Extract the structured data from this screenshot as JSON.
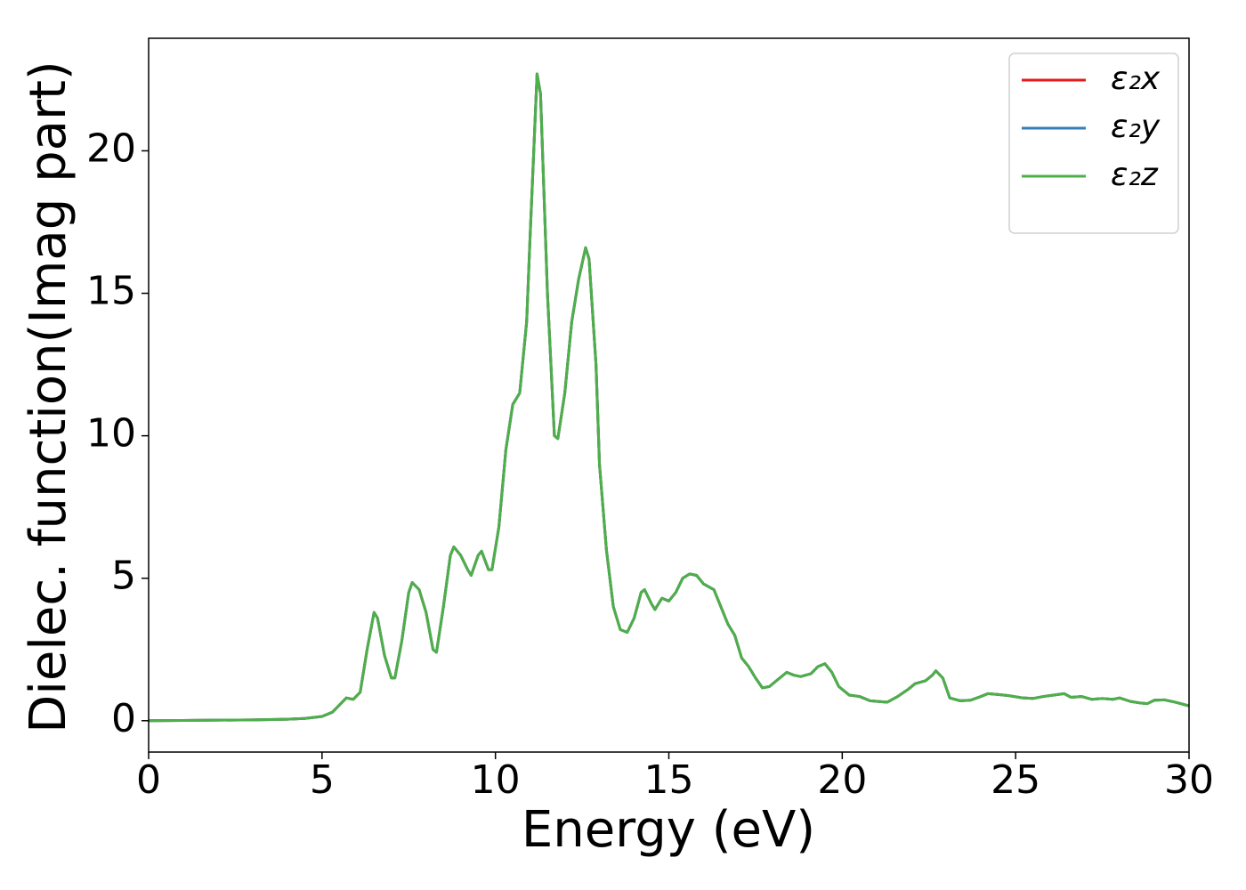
{
  "chart_data": {
    "type": "line",
    "xlabel": "Energy (eV)",
    "ylabel": "Dielec. function(Imag part)",
    "x": [
      0,
      1,
      2,
      3,
      4,
      4.5,
      5,
      5.3,
      5.5,
      5.7,
      5.9,
      6.1,
      6.3,
      6.5,
      6.6,
      6.8,
      7.0,
      7.1,
      7.3,
      7.5,
      7.6,
      7.8,
      8.0,
      8.2,
      8.3,
      8.5,
      8.7,
      8.8,
      9.0,
      9.2,
      9.3,
      9.5,
      9.6,
      9.8,
      9.9,
      10.1,
      10.3,
      10.5,
      10.7,
      10.9,
      11.0,
      11.2,
      11.3,
      11.5,
      11.7,
      11.8,
      12.0,
      12.2,
      12.4,
      12.6,
      12.7,
      12.9,
      13.0,
      13.2,
      13.4,
      13.6,
      13.8,
      14.0,
      14.2,
      14.3,
      14.5,
      14.6,
      14.8,
      15.0,
      15.2,
      15.4,
      15.6,
      15.8,
      16.0,
      16.3,
      16.5,
      16.7,
      16.9,
      17.1,
      17.3,
      17.5,
      17.7,
      17.9,
      18.2,
      18.4,
      18.6,
      18.8,
      19.1,
      19.3,
      19.5,
      19.7,
      19.9,
      20.2,
      20.5,
      20.8,
      21.3,
      21.6,
      21.9,
      22.1,
      22.4,
      22.6,
      22.7,
      22.9,
      23.1,
      23.4,
      23.7,
      24.0,
      24.2,
      24.5,
      24.8,
      25.2,
      25.5,
      25.8,
      26.1,
      26.4,
      26.6,
      26.9,
      27.2,
      27.5,
      27.8,
      28.0,
      28.3,
      28.6,
      28.8,
      29.0,
      29.3,
      29.6,
      30
    ],
    "series": [
      {
        "name": "ε₂x",
        "color": "#e41a1c",
        "values": [
          0,
          0.01,
          0.02,
          0.03,
          0.05,
          0.08,
          0.15,
          0.3,
          0.55,
          0.8,
          0.75,
          1.0,
          2.5,
          3.8,
          3.6,
          2.3,
          1.5,
          1.5,
          2.8,
          4.5,
          4.85,
          4.6,
          3.8,
          2.5,
          2.4,
          4.0,
          5.8,
          6.1,
          5.8,
          5.3,
          5.1,
          5.8,
          5.95,
          5.3,
          5.3,
          6.8,
          9.5,
          11.1,
          11.5,
          14,
          17,
          22.7,
          22,
          15,
          10,
          9.9,
          11.5,
          14,
          15.5,
          16.6,
          16.2,
          12.5,
          9.0,
          6.0,
          4.0,
          3.2,
          3.1,
          3.6,
          4.5,
          4.6,
          4.1,
          3.9,
          4.3,
          4.2,
          4.5,
          5.0,
          5.15,
          5.1,
          4.8,
          4.6,
          4.0,
          3.4,
          3.0,
          2.2,
          1.9,
          1.5,
          1.15,
          1.2,
          1.5,
          1.7,
          1.6,
          1.55,
          1.65,
          1.9,
          2.0,
          1.7,
          1.2,
          0.9,
          0.85,
          0.7,
          0.65,
          0.85,
          1.1,
          1.3,
          1.4,
          1.6,
          1.75,
          1.5,
          0.8,
          0.7,
          0.72,
          0.85,
          0.95,
          0.92,
          0.88,
          0.8,
          0.78,
          0.85,
          0.9,
          0.95,
          0.82,
          0.85,
          0.75,
          0.78,
          0.75,
          0.8,
          0.68,
          0.62,
          0.6,
          0.72,
          0.73,
          0.65,
          0.52
        ]
      },
      {
        "name": "ε₂y",
        "color": "#377eb8",
        "values": [
          0,
          0.01,
          0.02,
          0.03,
          0.05,
          0.08,
          0.15,
          0.3,
          0.55,
          0.8,
          0.75,
          1.0,
          2.5,
          3.8,
          3.6,
          2.3,
          1.5,
          1.5,
          2.8,
          4.5,
          4.85,
          4.6,
          3.8,
          2.5,
          2.4,
          4.0,
          5.8,
          6.1,
          5.8,
          5.3,
          5.1,
          5.8,
          5.95,
          5.3,
          5.3,
          6.8,
          9.5,
          11.1,
          11.5,
          14,
          17,
          22.7,
          22,
          15,
          10,
          9.9,
          11.5,
          14,
          15.5,
          16.6,
          16.2,
          12.5,
          9.0,
          6.0,
          4.0,
          3.2,
          3.1,
          3.6,
          4.5,
          4.6,
          4.1,
          3.9,
          4.3,
          4.2,
          4.5,
          5.0,
          5.15,
          5.1,
          4.8,
          4.6,
          4.0,
          3.4,
          3.0,
          2.2,
          1.9,
          1.5,
          1.15,
          1.2,
          1.5,
          1.7,
          1.6,
          1.55,
          1.65,
          1.9,
          2.0,
          1.7,
          1.2,
          0.9,
          0.85,
          0.7,
          0.65,
          0.85,
          1.1,
          1.3,
          1.4,
          1.6,
          1.75,
          1.5,
          0.8,
          0.7,
          0.72,
          0.85,
          0.95,
          0.92,
          0.88,
          0.8,
          0.78,
          0.85,
          0.9,
          0.95,
          0.82,
          0.85,
          0.75,
          0.78,
          0.75,
          0.8,
          0.68,
          0.62,
          0.6,
          0.72,
          0.73,
          0.65,
          0.52
        ]
      },
      {
        "name": "ε₂z",
        "color": "#4daf4a",
        "values": [
          0,
          0.01,
          0.02,
          0.03,
          0.05,
          0.08,
          0.15,
          0.3,
          0.55,
          0.8,
          0.75,
          1.0,
          2.5,
          3.8,
          3.6,
          2.3,
          1.5,
          1.5,
          2.8,
          4.5,
          4.85,
          4.6,
          3.8,
          2.5,
          2.4,
          4.0,
          5.8,
          6.1,
          5.8,
          5.3,
          5.1,
          5.8,
          5.95,
          5.3,
          5.3,
          6.8,
          9.5,
          11.1,
          11.5,
          14,
          17,
          22.7,
          22,
          15,
          10,
          9.9,
          11.5,
          14,
          15.5,
          16.6,
          16.2,
          12.5,
          9.0,
          6.0,
          4.0,
          3.2,
          3.1,
          3.6,
          4.5,
          4.6,
          4.1,
          3.9,
          4.3,
          4.2,
          4.5,
          5.0,
          5.15,
          5.1,
          4.8,
          4.6,
          4.0,
          3.4,
          3.0,
          2.2,
          1.9,
          1.5,
          1.15,
          1.2,
          1.5,
          1.7,
          1.6,
          1.55,
          1.65,
          1.9,
          2.0,
          1.7,
          1.2,
          0.9,
          0.85,
          0.7,
          0.65,
          0.85,
          1.1,
          1.3,
          1.4,
          1.6,
          1.75,
          1.5,
          0.8,
          0.7,
          0.72,
          0.85,
          0.95,
          0.92,
          0.88,
          0.8,
          0.78,
          0.85,
          0.9,
          0.95,
          0.82,
          0.85,
          0.75,
          0.78,
          0.75,
          0.8,
          0.68,
          0.62,
          0.6,
          0.72,
          0.73,
          0.65,
          0.52
        ]
      }
    ],
    "xlim": [
      0,
      30
    ],
    "xticks": [
      0,
      5,
      10,
      15,
      20,
      25,
      30
    ],
    "ylim": [
      -1.1,
      23.95
    ],
    "yticks": [
      0,
      5,
      10,
      15,
      20
    ],
    "grid": false,
    "legend": "upper right"
  }
}
